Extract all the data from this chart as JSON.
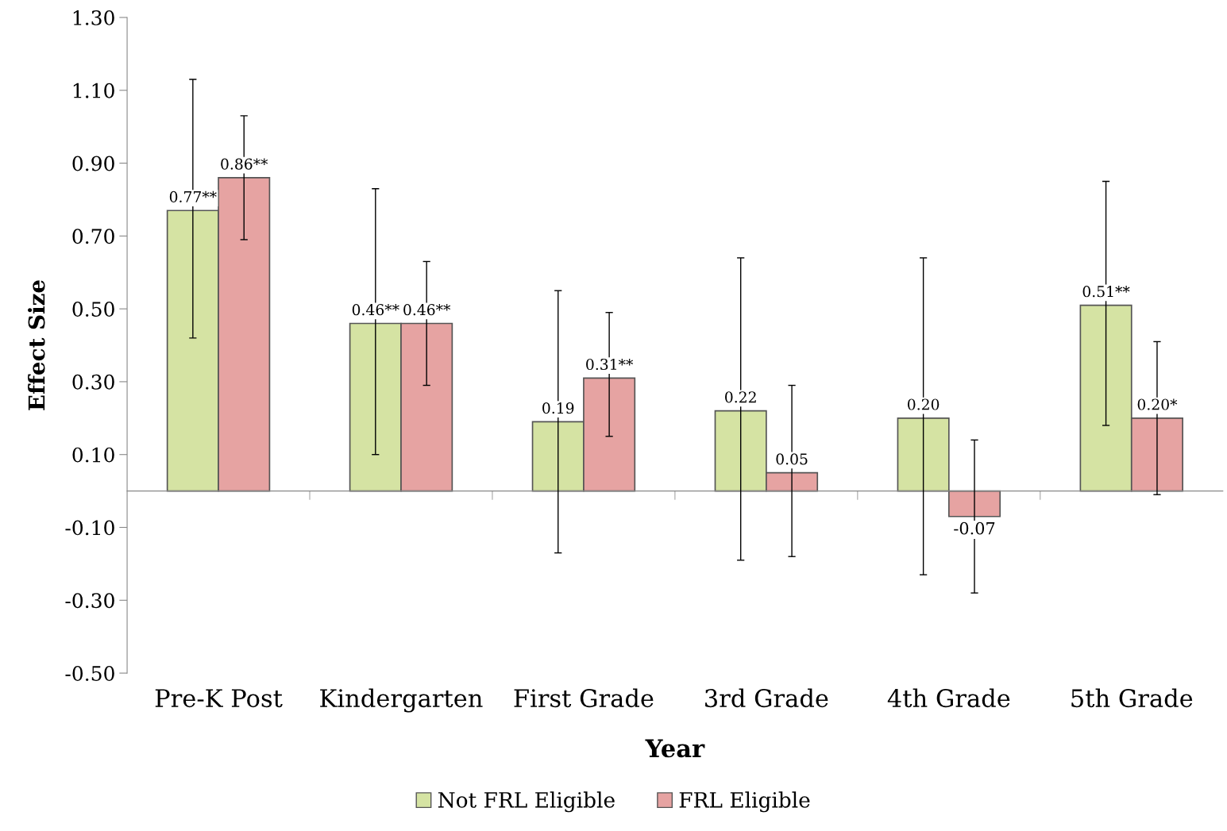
{
  "chart_data": {
    "type": "bar",
    "xlabel": "Year",
    "ylabel": "Effect Size",
    "categories": [
      "Pre-K Post",
      "Kindergarten",
      "First Grade",
      "3rd Grade",
      "4th Grade",
      "5th Grade"
    ],
    "series": [
      {
        "name": "Not FRL Eligible",
        "color": "#d5e3a3",
        "values": [
          0.77,
          0.46,
          0.19,
          0.22,
          0.2,
          0.51
        ],
        "value_labels": [
          "0.77**",
          "0.46**",
          "0.19",
          "0.22",
          "0.20",
          "0.51**"
        ],
        "errors": [
          [
            0.42,
            1.13
          ],
          [
            0.1,
            0.83
          ],
          [
            -0.17,
            0.55
          ],
          [
            -0.19,
            0.64
          ],
          [
            -0.23,
            0.64
          ],
          [
            0.18,
            0.85
          ]
        ]
      },
      {
        "name": "FRL Eligible",
        "color": "#e6a3a2",
        "values": [
          0.86,
          0.46,
          0.31,
          0.05,
          -0.07,
          0.2
        ],
        "value_labels": [
          "0.86**",
          "0.46**",
          "0.31**",
          "0.05",
          "-0.07",
          "0.20*"
        ],
        "errors": [
          [
            0.69,
            1.03
          ],
          [
            0.29,
            0.63
          ],
          [
            0.15,
            0.49
          ],
          [
            -0.18,
            0.29
          ],
          [
            -0.28,
            0.14
          ],
          [
            -0.01,
            0.41
          ]
        ]
      }
    ],
    "ylim": [
      -0.5,
      1.3
    ],
    "yticks": [
      {
        "value": -0.5,
        "label": "-0.50"
      },
      {
        "value": -0.3,
        "label": "-0.30"
      },
      {
        "value": -0.1,
        "label": "-0.10"
      },
      {
        "value": 0.1,
        "label": "0.10"
      },
      {
        "value": 0.3,
        "label": "0.30"
      },
      {
        "value": 0.5,
        "label": "0.50"
      },
      {
        "value": 0.7,
        "label": "0.70"
      },
      {
        "value": 0.9,
        "label": "0.90"
      },
      {
        "value": 1.1,
        "label": "1.10"
      },
      {
        "value": 1.3,
        "label": "1.30"
      }
    ],
    "grid": false,
    "legend": "bottom"
  }
}
